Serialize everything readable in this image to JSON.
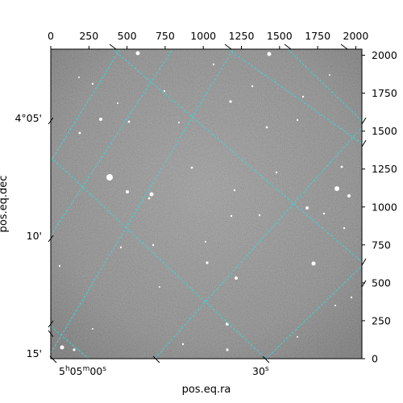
{
  "figure": {
    "xlabel": "pos.eq.ra",
    "ylabel": "pos.eq.dec"
  },
  "pixel_axes": {
    "x_ticks": [
      "0",
      "250",
      "500",
      "750",
      "1000",
      "1250",
      "1500",
      "1750",
      "2000"
    ],
    "y_ticks": [
      "0",
      "250",
      "500",
      "750",
      "1000",
      "1250",
      "1500",
      "1750",
      "2000"
    ],
    "xlim": [
      0,
      2040
    ],
    "ylim": [
      0,
      2040
    ]
  },
  "world_axes": {
    "dec_ticks": [
      {
        "label": "4°05'"
      },
      {
        "label": "10'"
      },
      {
        "label": "15'"
      }
    ],
    "ra_ticks": [
      {
        "main": "5",
        "h": "h",
        "mm": "05",
        "m": "m",
        "ss": "00",
        "s": "s"
      },
      {
        "main": "30",
        "s": "s"
      }
    ]
  },
  "image": {
    "description_colors": {
      "background": "#6e6e6e",
      "grid": "#3cd6d6"
    }
  }
}
